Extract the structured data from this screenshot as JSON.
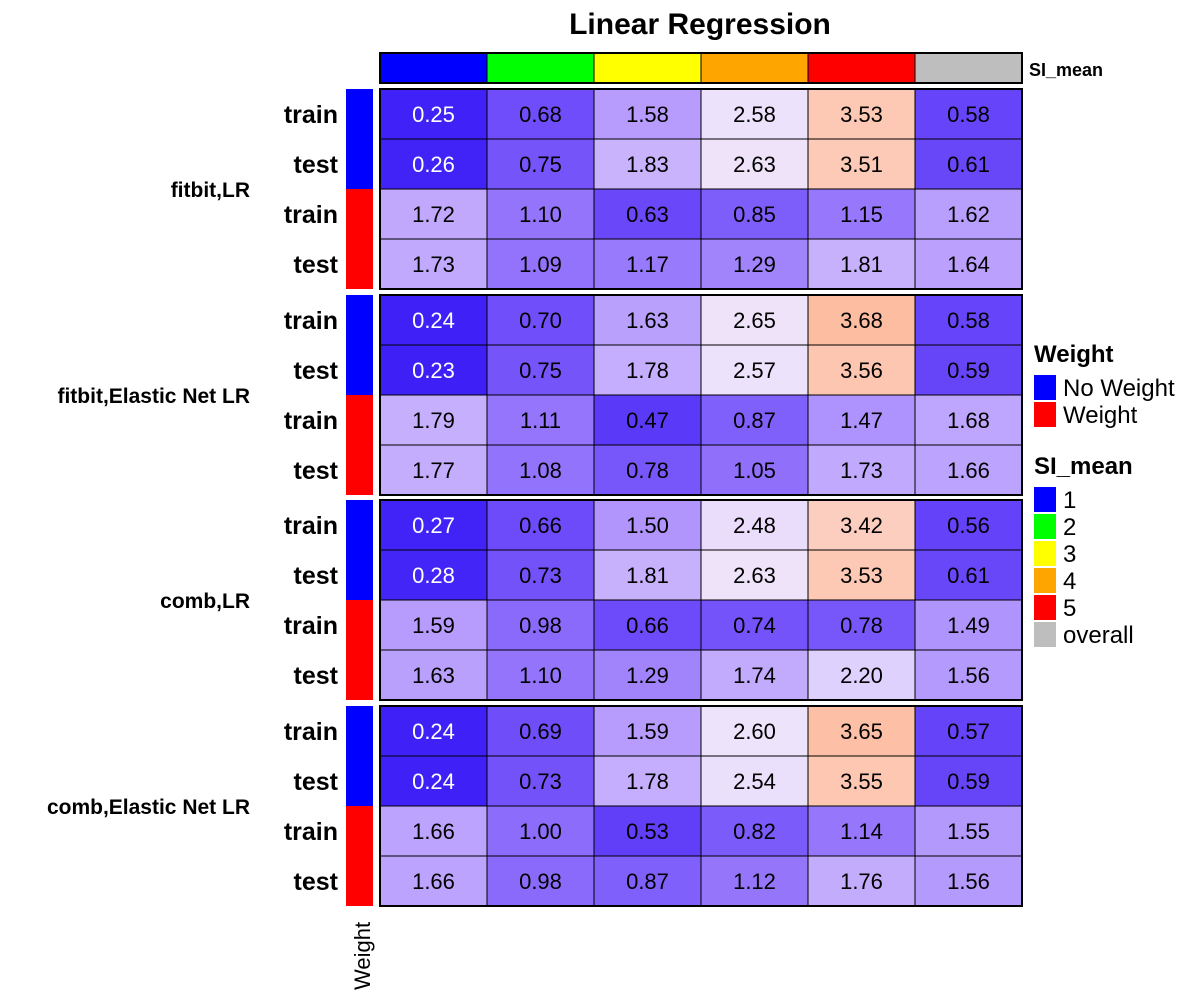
{
  "chart_data": {
    "type": "heatmap",
    "title": "Linear Regression",
    "column_annotation": {
      "name": "SI_mean",
      "levels": [
        "1",
        "2",
        "3",
        "4",
        "5",
        "overall"
      ],
      "colors": [
        "#0000ff",
        "#00ff00",
        "#ffff00",
        "#ffa500",
        "#ff0000",
        "#bebebe"
      ]
    },
    "row_annotation": {
      "name": "Weight",
      "levels": [
        "No Weight",
        "Weight"
      ],
      "colors": [
        "#0000ff",
        "#ff0000"
      ]
    },
    "groups": [
      {
        "label": "fitbit,LR",
        "rows": [
          {
            "label": "train",
            "weight": "No Weight",
            "values": [
              0.25,
              0.68,
              1.58,
              2.58,
              3.53,
              0.58
            ]
          },
          {
            "label": "test",
            "weight": "No Weight",
            "values": [
              0.26,
              0.75,
              1.83,
              2.63,
              3.51,
              0.61
            ]
          },
          {
            "label": "train",
            "weight": "Weight",
            "values": [
              1.72,
              1.1,
              0.63,
              0.85,
              1.15,
              1.62
            ]
          },
          {
            "label": "test",
            "weight": "Weight",
            "values": [
              1.73,
              1.09,
              1.17,
              1.29,
              1.81,
              1.64
            ]
          }
        ]
      },
      {
        "label": "fitbit,Elastic Net LR",
        "rows": [
          {
            "label": "train",
            "weight": "No Weight",
            "values": [
              0.24,
              0.7,
              1.63,
              2.65,
              3.68,
              0.58
            ]
          },
          {
            "label": "test",
            "weight": "No Weight",
            "values": [
              0.23,
              0.75,
              1.78,
              2.57,
              3.56,
              0.59
            ]
          },
          {
            "label": "train",
            "weight": "Weight",
            "values": [
              1.79,
              1.11,
              0.47,
              0.87,
              1.47,
              1.68
            ]
          },
          {
            "label": "test",
            "weight": "Weight",
            "values": [
              1.77,
              1.08,
              0.78,
              1.05,
              1.73,
              1.66
            ]
          }
        ]
      },
      {
        "label": "comb,LR",
        "rows": [
          {
            "label": "train",
            "weight": "No Weight",
            "values": [
              0.27,
              0.66,
              1.5,
              2.48,
              3.42,
              0.56
            ]
          },
          {
            "label": "test",
            "weight": "No Weight",
            "values": [
              0.28,
              0.73,
              1.81,
              2.63,
              3.53,
              0.61
            ]
          },
          {
            "label": "train",
            "weight": "Weight",
            "values": [
              1.59,
              0.98,
              0.66,
              0.74,
              0.78,
              1.49
            ]
          },
          {
            "label": "test",
            "weight": "Weight",
            "values": [
              1.63,
              1.1,
              1.29,
              1.74,
              2.2,
              1.56
            ]
          }
        ]
      },
      {
        "label": "comb,Elastic Net LR",
        "rows": [
          {
            "label": "train",
            "weight": "No Weight",
            "values": [
              0.24,
              0.69,
              1.59,
              2.6,
              3.65,
              0.57
            ]
          },
          {
            "label": "test",
            "weight": "No Weight",
            "values": [
              0.24,
              0.73,
              1.78,
              2.54,
              3.55,
              0.59
            ]
          },
          {
            "label": "train",
            "weight": "Weight",
            "values": [
              1.66,
              1.0,
              0.53,
              0.82,
              1.14,
              1.55
            ]
          },
          {
            "label": "test",
            "weight": "Weight",
            "values": [
              1.66,
              0.98,
              0.87,
              1.12,
              1.76,
              1.56
            ]
          }
        ]
      }
    ],
    "color_scale": {
      "stops": [
        {
          "value": 0.2,
          "color": "#3a1cf6"
        },
        {
          "value": 0.5,
          "color": "#5e3cf9"
        },
        {
          "value": 1.0,
          "color": "#8c6cfb"
        },
        {
          "value": 1.6,
          "color": "#b89dfd"
        },
        {
          "value": 2.1,
          "color": "#dcccfd"
        },
        {
          "value": 2.6,
          "color": "#ede3fb"
        },
        {
          "value": 3.0,
          "color": "#f6dfe0"
        },
        {
          "value": 3.5,
          "color": "#fdcbb9"
        },
        {
          "value": 3.7,
          "color": "#fdbb9e"
        }
      ],
      "light_text_below": 0.45
    },
    "legends": [
      {
        "title": "Weight",
        "items": [
          {
            "label": "No Weight",
            "color": "#0000ff"
          },
          {
            "label": "Weight",
            "color": "#ff0000"
          }
        ]
      },
      {
        "title": "SI_mean",
        "items": [
          {
            "label": "1",
            "color": "#0000ff"
          },
          {
            "label": "2",
            "color": "#00ff00"
          },
          {
            "label": "3",
            "color": "#ffff00"
          },
          {
            "label": "4",
            "color": "#ffa500"
          },
          {
            "label": "5",
            "color": "#ff0000"
          },
          {
            "label": "overall",
            "color": "#bebebe"
          }
        ]
      }
    ]
  }
}
